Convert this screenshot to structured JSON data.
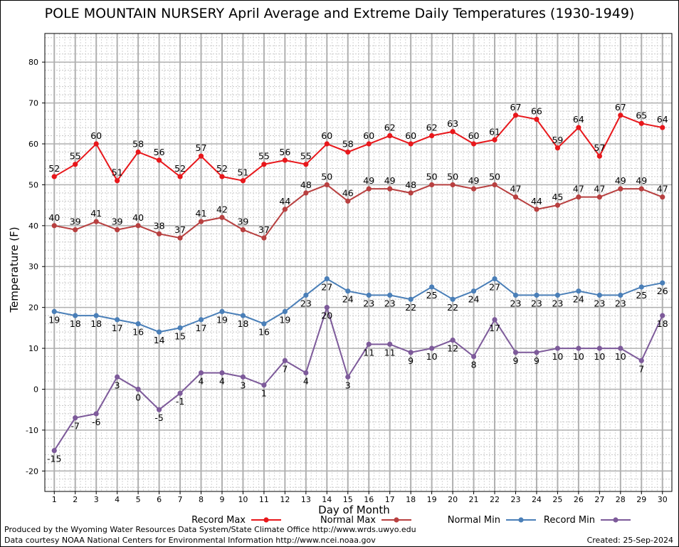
{
  "chart_data": {
    "type": "line",
    "title": "POLE MOUNTAIN NURSERY April Average and Extreme Daily Temperatures (1930-1949)",
    "xlabel": "Day of Month",
    "ylabel": "Temperature (F)",
    "ylim": [
      -25,
      87
    ],
    "yticks": [
      -20,
      -10,
      0,
      10,
      20,
      30,
      40,
      50,
      60,
      70,
      80
    ],
    "x": [
      1,
      2,
      3,
      4,
      5,
      6,
      7,
      8,
      9,
      10,
      11,
      12,
      13,
      14,
      15,
      16,
      17,
      18,
      19,
      20,
      21,
      22,
      23,
      24,
      25,
      26,
      27,
      28,
      29,
      30
    ],
    "grid": true,
    "legend_position": "bottom",
    "series": [
      {
        "name": "Record Max",
        "color": "#e8171b",
        "label_pos": "above",
        "values": [
          52,
          55,
          60,
          51,
          58,
          56,
          52,
          57,
          52,
          51,
          55,
          56,
          55,
          60,
          58,
          60,
          62,
          60,
          62,
          63,
          60,
          61,
          67,
          66,
          59,
          64,
          57,
          67,
          65,
          64
        ]
      },
      {
        "name": "Normal Max",
        "color": "#b84040",
        "label_pos": "above",
        "values": [
          40,
          39,
          41,
          39,
          40,
          38,
          37,
          41,
          42,
          39,
          37,
          44,
          48,
          50,
          46,
          49,
          49,
          48,
          50,
          50,
          49,
          50,
          47,
          44,
          45,
          47,
          47,
          49,
          49,
          47
        ]
      },
      {
        "name": "Normal Min",
        "color": "#4a7fb8",
        "label_pos": "below",
        "values": [
          19,
          18,
          18,
          17,
          16,
          14,
          15,
          17,
          19,
          18,
          16,
          19,
          23,
          27,
          24,
          23,
          23,
          22,
          25,
          22,
          24,
          27,
          23,
          23,
          23,
          24,
          23,
          23,
          25,
          26
        ]
      },
      {
        "name": "Record Min",
        "color": "#7d5a9a",
        "label_pos": "below",
        "values": [
          -15,
          -7,
          -6,
          3,
          0,
          -5,
          -1,
          4,
          4,
          3,
          1,
          7,
          4,
          20,
          3,
          11,
          11,
          9,
          10,
          12,
          8,
          17,
          9,
          9,
          10,
          10,
          10,
          10,
          7,
          18
        ]
      }
    ]
  },
  "footer": {
    "credit_line1": "Produced by the Wyoming Water Resources Data System/State Climate Office http://www.wrds.uwyo.edu",
    "credit_line2": "Data courtesy NOAA National Centers for Environmental Information http://www.ncei.noaa.gov",
    "created": "Created:  25-Sep-2024"
  }
}
